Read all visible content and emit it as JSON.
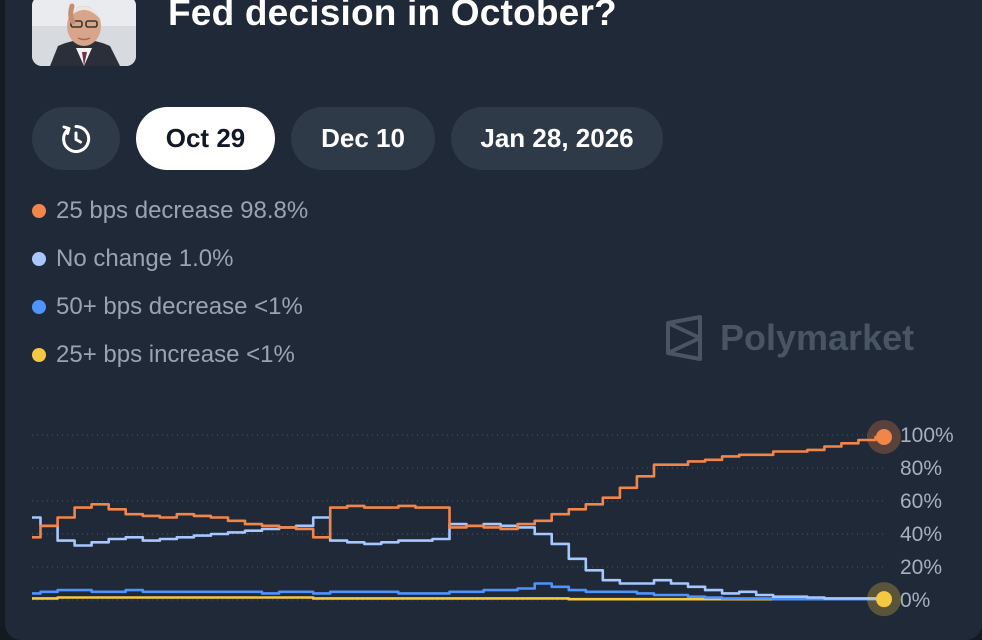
{
  "header": {
    "title": "Fed decision in October?",
    "avatar_icon": "fed-chair-portrait"
  },
  "tabs": {
    "history_icon": "history-clock-icon",
    "items": [
      {
        "label": "Oct 29",
        "active": true
      },
      {
        "label": "Dec 10",
        "active": false
      },
      {
        "label": "Jan 28, 2026",
        "active": false
      }
    ]
  },
  "watermark": {
    "text": "Polymarket"
  },
  "colors": {
    "orange": "#f2854a",
    "light_blue": "#a7c7ff",
    "blue": "#4f93ff",
    "yellow": "#f5c842",
    "card": "#1f2937"
  },
  "chart_data": {
    "type": "line",
    "title": "",
    "xlabel": "",
    "ylabel": "",
    "ylim": [
      0,
      100
    ],
    "y_ticks": [
      "100%",
      "80%",
      "60%",
      "40%",
      "20%",
      "0%"
    ],
    "grid": true,
    "legend_position": "top-left",
    "x": [
      0,
      2,
      4,
      6,
      8,
      10,
      12,
      14,
      16,
      18,
      20,
      22,
      24,
      26,
      28,
      30,
      32,
      34,
      36,
      38,
      40,
      42,
      44,
      46,
      48,
      50,
      52,
      54,
      56,
      58,
      60,
      62,
      64,
      66,
      68,
      70,
      72,
      74,
      76,
      78,
      80,
      82,
      84,
      86,
      88,
      90,
      92,
      94,
      96,
      98,
      100
    ],
    "series": [
      {
        "name": "25 bps decrease",
        "label": "25 bps decrease 98.8%",
        "color": "#f2854a",
        "values": [
          38,
          45,
          50,
          56,
          58,
          55,
          52,
          51,
          50,
          52,
          51,
          50,
          48,
          46,
          45,
          44,
          43,
          38,
          56,
          57,
          56,
          56,
          57,
          56,
          56,
          44,
          45,
          44,
          43,
          46,
          48,
          52,
          55,
          58,
          62,
          68,
          75,
          82,
          82,
          84,
          85,
          87,
          88,
          88,
          90,
          90,
          91,
          93,
          95,
          97,
          98.8
        ]
      },
      {
        "name": "No change",
        "label": "No change 1.0%",
        "color": "#a7c7ff",
        "values": [
          50,
          45,
          36,
          33,
          35,
          37,
          38,
          36,
          37,
          38,
          39,
          40,
          41,
          42,
          43,
          44,
          45,
          50,
          36,
          35,
          34,
          35,
          36,
          36,
          37,
          46,
          45,
          46,
          45,
          44,
          40,
          34,
          25,
          18,
          12,
          10,
          10,
          12,
          10,
          8,
          6,
          4,
          5,
          3,
          2,
          2,
          1.5,
          1,
          1,
          1,
          1
        ]
      },
      {
        "name": "50+ bps decrease",
        "label": "50+ bps decrease <1%",
        "color": "#4f93ff",
        "values": [
          4,
          5,
          6,
          6,
          5,
          5,
          6,
          5,
          5,
          5,
          5,
          5,
          5,
          5,
          4,
          5,
          5,
          4,
          5,
          5,
          5,
          5,
          4,
          4,
          4,
          5,
          5,
          6,
          6,
          7,
          10,
          8,
          6,
          5,
          5,
          5,
          4,
          3,
          3,
          2,
          1.5,
          1,
          1,
          1,
          0.5,
          0.5,
          0.5,
          0.5,
          0.5,
          0.5,
          0.5
        ]
      },
      {
        "name": "25+ bps increase",
        "label": "25+ bps increase <1%",
        "color": "#f5c842",
        "values": [
          1,
          1,
          1.5,
          1.5,
          1.5,
          1.5,
          1.5,
          1.5,
          1.5,
          1.5,
          1.5,
          1.5,
          1.5,
          1.5,
          1.5,
          1.5,
          1.5,
          1,
          1,
          1,
          1,
          1,
          1,
          1,
          1,
          1,
          1,
          1,
          1,
          1,
          1,
          1,
          0.5,
          0.5,
          0.5,
          0.5,
          0.5,
          0.5,
          0.5,
          0.5,
          0.5,
          0.5,
          0.5,
          0.5,
          0.5,
          0.5,
          0.5,
          0.5,
          0.5,
          0.5,
          0.5
        ]
      }
    ]
  }
}
